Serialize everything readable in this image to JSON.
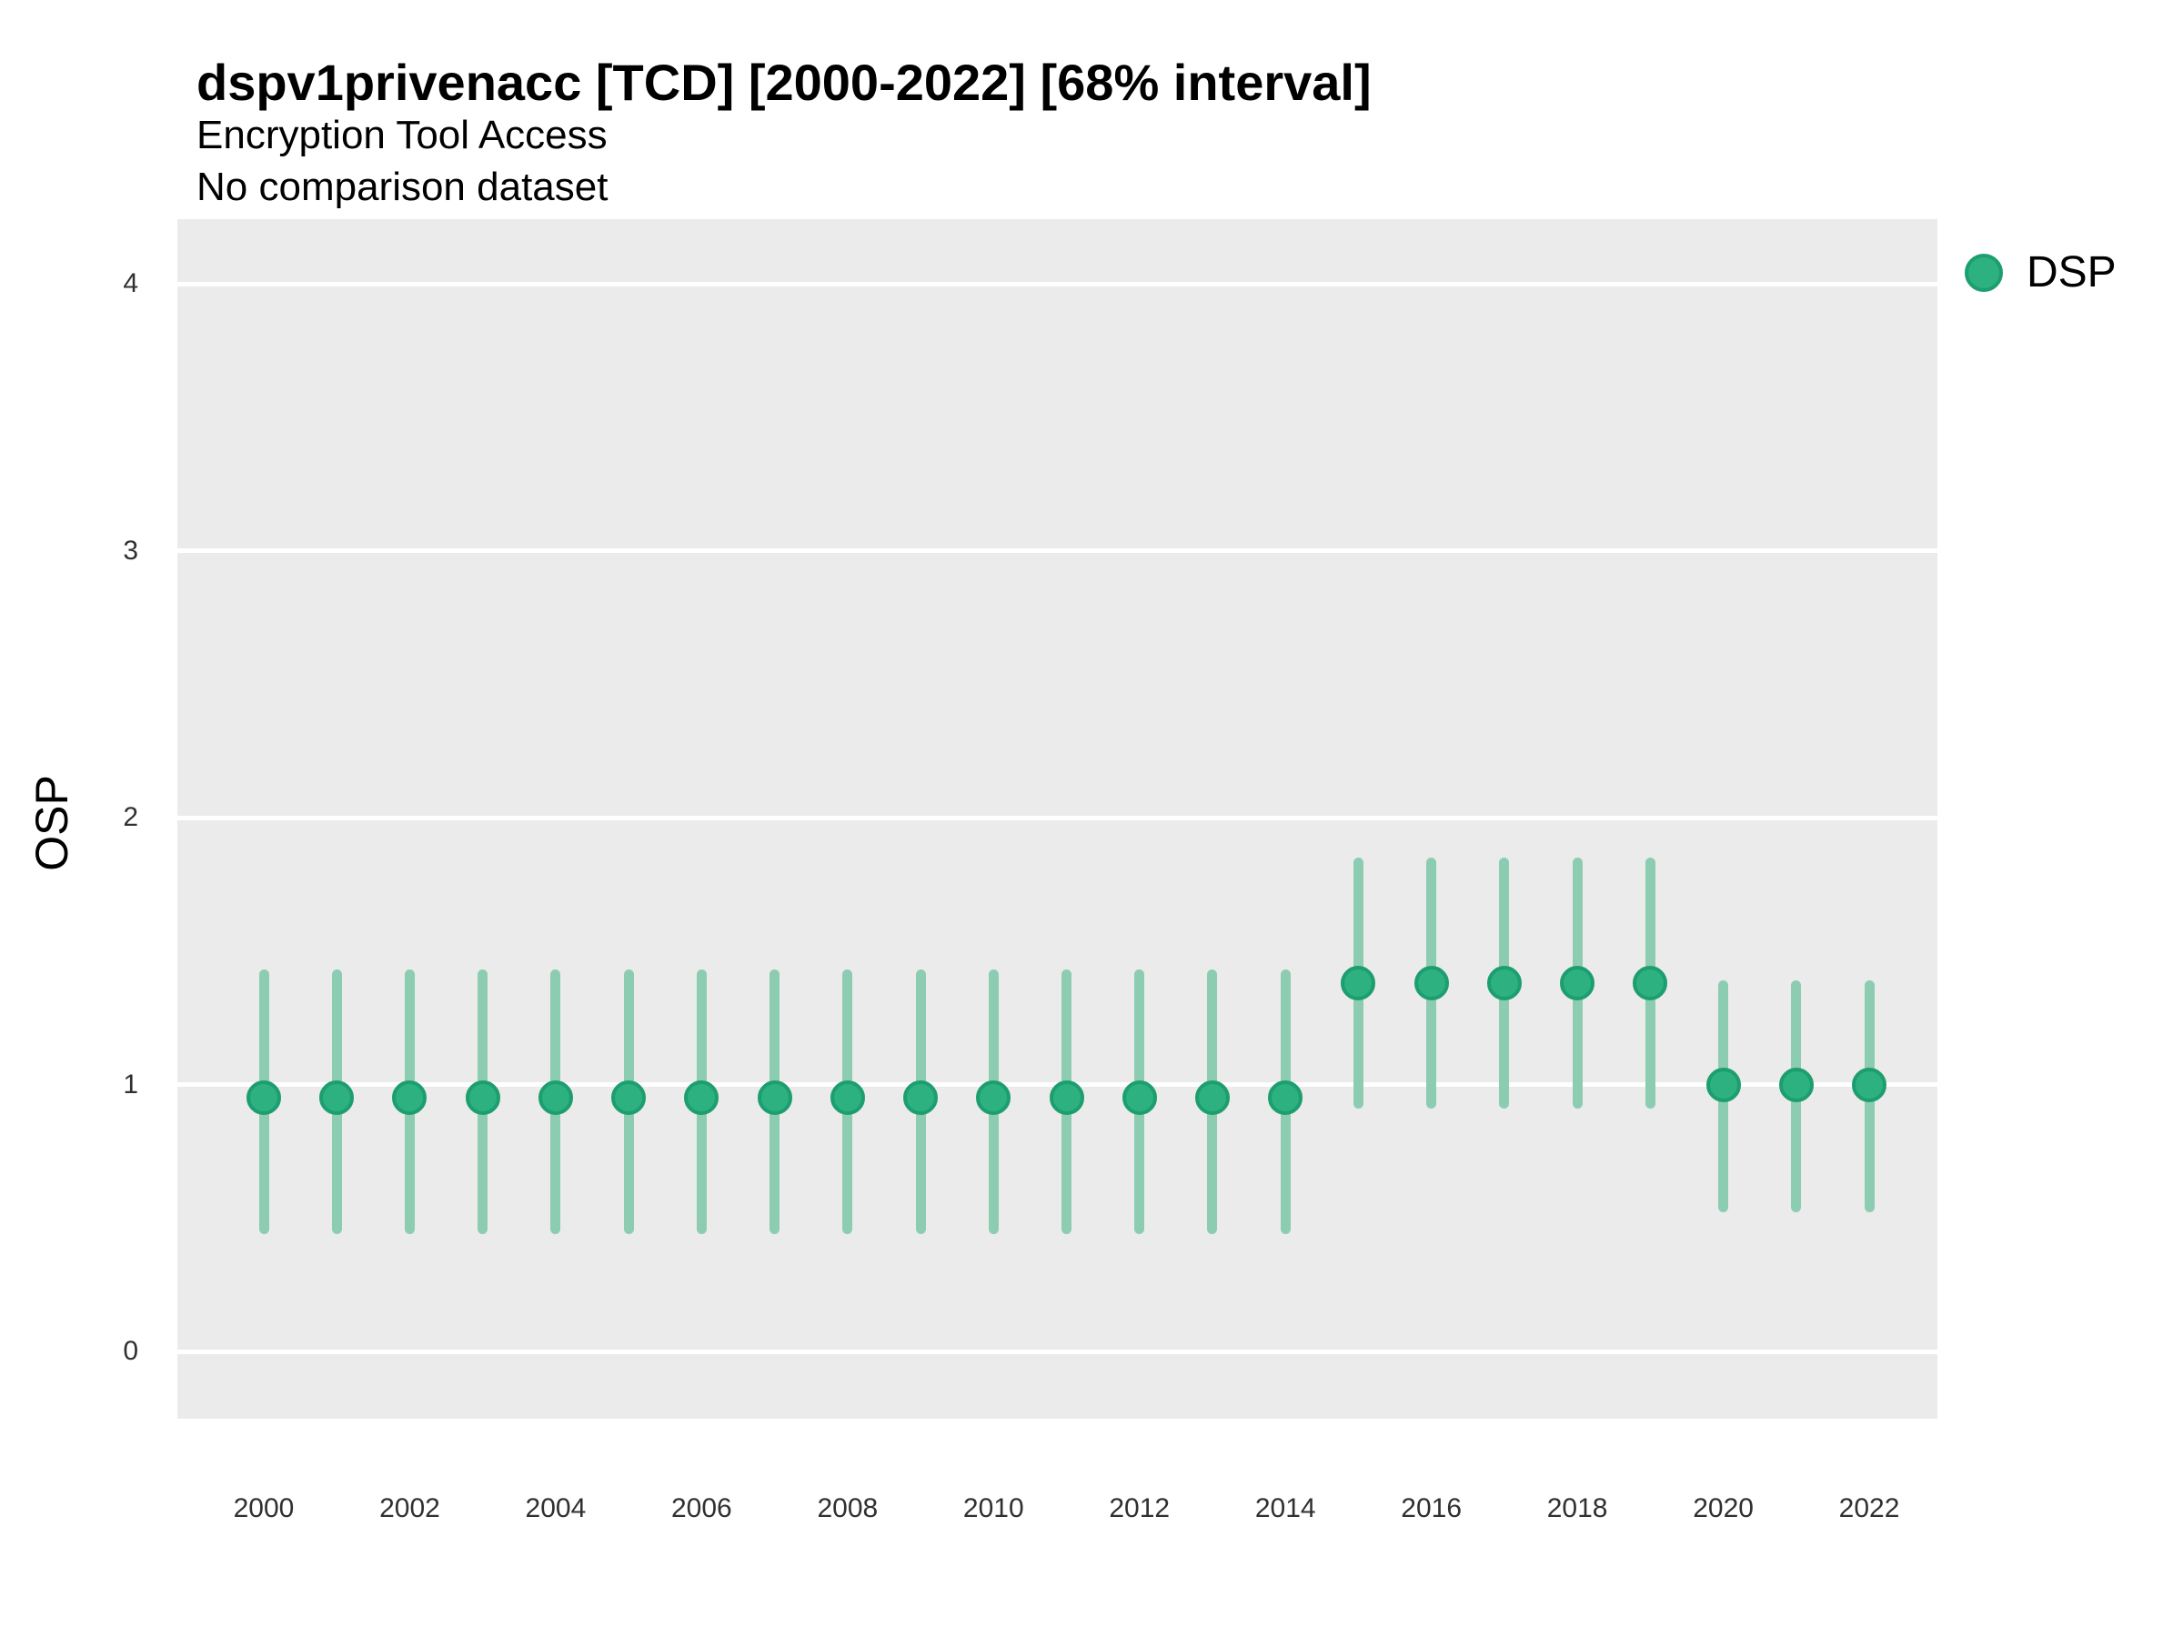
{
  "header": {
    "title": "dspv1privenacc [TCD] [2000-2022] [68% interval]",
    "subtitle": "Encryption Tool Access",
    "note": "No comparison dataset"
  },
  "axes": {
    "y_label": "OSP",
    "y_ticks": [
      0,
      1,
      2,
      3,
      4
    ],
    "x_ticks": [
      2000,
      2002,
      2004,
      2006,
      2008,
      2010,
      2012,
      2014,
      2016,
      2018,
      2020,
      2022
    ]
  },
  "legend": {
    "position": "right-top",
    "series": [
      {
        "label": "DSP",
        "marker": "circle"
      }
    ]
  },
  "colors": {
    "panel_background": "#EBEBEB",
    "gridline": "#FFFFFF",
    "point_fill": "#2DB181",
    "point_stroke": "#1D9E6E",
    "interval_bar": "#8CCDB2",
    "text": "#000000",
    "tick_text": "#303030"
  },
  "chart_data": {
    "type": "scatter",
    "subtype": "pointrange",
    "title": "dspv1privenacc [TCD] [2000-2022] [68% interval]",
    "subtitle": "Encryption Tool Access",
    "note": "No comparison dataset",
    "xlabel": "",
    "ylabel": "OSP",
    "interval_level": "68%",
    "ylim": [
      -0.25,
      4.25
    ],
    "xlim": [
      1998.8,
      2023.2
    ],
    "grid": "major-horizontal",
    "legend_position": "right-top",
    "series": [
      {
        "name": "DSP",
        "points": [
          {
            "year": 2000,
            "value": 0.95,
            "lo": 0.44,
            "hi": 1.43
          },
          {
            "year": 2001,
            "value": 0.95,
            "lo": 0.44,
            "hi": 1.43
          },
          {
            "year": 2002,
            "value": 0.95,
            "lo": 0.44,
            "hi": 1.43
          },
          {
            "year": 2003,
            "value": 0.95,
            "lo": 0.44,
            "hi": 1.43
          },
          {
            "year": 2004,
            "value": 0.95,
            "lo": 0.44,
            "hi": 1.43
          },
          {
            "year": 2005,
            "value": 0.95,
            "lo": 0.44,
            "hi": 1.43
          },
          {
            "year": 2006,
            "value": 0.95,
            "lo": 0.44,
            "hi": 1.43
          },
          {
            "year": 2007,
            "value": 0.95,
            "lo": 0.44,
            "hi": 1.43
          },
          {
            "year": 2008,
            "value": 0.95,
            "lo": 0.44,
            "hi": 1.43
          },
          {
            "year": 2009,
            "value": 0.95,
            "lo": 0.44,
            "hi": 1.43
          },
          {
            "year": 2010,
            "value": 0.95,
            "lo": 0.44,
            "hi": 1.43
          },
          {
            "year": 2011,
            "value": 0.95,
            "lo": 0.44,
            "hi": 1.43
          },
          {
            "year": 2012,
            "value": 0.95,
            "lo": 0.44,
            "hi": 1.43
          },
          {
            "year": 2013,
            "value": 0.95,
            "lo": 0.44,
            "hi": 1.43
          },
          {
            "year": 2014,
            "value": 0.95,
            "lo": 0.44,
            "hi": 1.43
          },
          {
            "year": 2015,
            "value": 1.38,
            "lo": 0.91,
            "hi": 1.85
          },
          {
            "year": 2016,
            "value": 1.38,
            "lo": 0.91,
            "hi": 1.85
          },
          {
            "year": 2017,
            "value": 1.38,
            "lo": 0.91,
            "hi": 1.85
          },
          {
            "year": 2018,
            "value": 1.38,
            "lo": 0.91,
            "hi": 1.85
          },
          {
            "year": 2019,
            "value": 1.38,
            "lo": 0.91,
            "hi": 1.85
          },
          {
            "year": 2020,
            "value": 1.0,
            "lo": 0.52,
            "hi": 1.39
          },
          {
            "year": 2021,
            "value": 1.0,
            "lo": 0.52,
            "hi": 1.39
          },
          {
            "year": 2022,
            "value": 1.0,
            "lo": 0.52,
            "hi": 1.39
          }
        ]
      }
    ]
  }
}
